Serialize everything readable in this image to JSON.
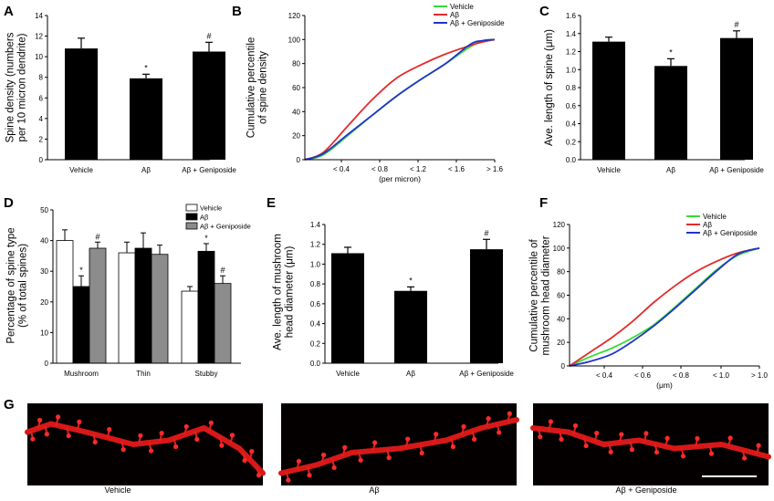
{
  "panel_letters": [
    "A",
    "B",
    "C",
    "D",
    "E",
    "F",
    "G"
  ],
  "colors": {
    "vehicle_line": "#33dd33",
    "abeta_line": "#e32b2b",
    "genip_line": "#2233cc",
    "bar_black": "#000000",
    "bar_white": "#ffffff",
    "bar_gray": "#8c8c8c"
  },
  "chart_data": [
    {
      "id": "A",
      "type": "bar",
      "categories": [
        "Vehicle",
        "Aβ",
        "Aβ + Geniposide"
      ],
      "values": [
        10.8,
        7.9,
        10.5
      ],
      "errors": [
        1.0,
        0.4,
        0.9
      ],
      "sig": [
        "",
        "*",
        "#"
      ],
      "ylabel": [
        "Spine density (numbers",
        "per 10 micron dendrite)"
      ],
      "ylim": [
        0,
        14
      ],
      "yticks": [
        "0",
        "2",
        "4",
        "6",
        "8",
        "10",
        "12",
        "14"
      ]
    },
    {
      "id": "B",
      "type": "line",
      "ylabel": [
        "Cumulative percentile",
        "of spine density"
      ],
      "xlabel": "(per micron)",
      "ylim": [
        0,
        120
      ],
      "yticks": [
        "0",
        "20",
        "40",
        "60",
        "80",
        "100",
        "120"
      ],
      "xticks": [
        "< 0.4",
        "< 0.8",
        "< 1.2",
        "< 1.6",
        "> 1.6"
      ],
      "legend": [
        "Vehicle",
        "Aβ",
        "Aβ + Geniposide"
      ],
      "series": [
        {
          "name": "Vehicle",
          "x": [
            0.25,
            0.4,
            0.6,
            0.8,
            1.0,
            1.2,
            1.4,
            1.6,
            1.7,
            1.8
          ],
          "y": [
            0,
            4,
            20,
            37,
            53,
            67,
            80,
            94,
            99,
            100
          ]
        },
        {
          "name": "Aβ",
          "x": [
            0.25,
            0.4,
            0.6,
            0.8,
            1.0,
            1.2,
            1.4,
            1.6,
            1.7,
            1.8
          ],
          "y": [
            0,
            6,
            28,
            50,
            68,
            79,
            88,
            95,
            98,
            100
          ]
        },
        {
          "name": "Aβ + Geniposide",
          "x": [
            0.25,
            0.4,
            0.6,
            0.8,
            1.0,
            1.2,
            1.4,
            1.6,
            1.7,
            1.8
          ],
          "y": [
            0,
            5,
            21,
            37,
            53,
            67,
            80,
            96,
            99,
            100
          ]
        }
      ]
    },
    {
      "id": "C",
      "type": "bar",
      "categories": [
        "Vehicle",
        "Aβ",
        "Aβ + Geniposide"
      ],
      "values": [
        1.31,
        1.04,
        1.35
      ],
      "errors": [
        0.05,
        0.08,
        0.08
      ],
      "sig": [
        "",
        "*",
        "#"
      ],
      "ylabel": [
        "Ave. length of spine (μm)"
      ],
      "ylim": [
        0,
        1.6
      ],
      "yticks": [
        "0.0",
        "0.2",
        "0.4",
        "0.6",
        "0.8",
        "1.0",
        "1.2",
        "1.4",
        "1.6"
      ]
    },
    {
      "id": "D",
      "type": "grouped-bar",
      "categories": [
        "Mushroom",
        "Thin",
        "Stubby"
      ],
      "ylabel": [
        "Percentage of spine type",
        "(% of total spines)"
      ],
      "ylim": [
        0,
        50
      ],
      "yticks": [
        "0",
        "10",
        "20",
        "30",
        "40",
        "50"
      ],
      "legend": [
        "Vehicle",
        "Aβ",
        "Aβ + Geniposide"
      ],
      "series": [
        {
          "name": "Vehicle",
          "values": [
            40,
            36,
            23.5
          ],
          "errors": [
            3.5,
            3.5,
            1.5
          ],
          "sig": [
            "",
            "",
            ""
          ]
        },
        {
          "name": "Aβ",
          "values": [
            25,
            37.5,
            36.5
          ],
          "errors": [
            3.5,
            5,
            2.5
          ],
          "sig": [
            "*",
            "",
            "*"
          ]
        },
        {
          "name": "Aβ + Geniposide",
          "values": [
            37.5,
            35.5,
            26
          ],
          "errors": [
            2,
            3,
            2.5
          ],
          "sig": [
            "#",
            "",
            "#"
          ]
        }
      ]
    },
    {
      "id": "E",
      "type": "bar",
      "categories": [
        "Vehicle",
        "Aβ",
        "Aβ + Geniposide"
      ],
      "values": [
        1.11,
        0.73,
        1.15
      ],
      "errors": [
        0.06,
        0.04,
        0.1
      ],
      "sig": [
        "",
        "*",
        "#"
      ],
      "ylabel": [
        "Ave. length of mushroom",
        "head diameter (μm)"
      ],
      "ylim": [
        0,
        1.4
      ],
      "yticks": [
        "0.0",
        "0.2",
        "0.4",
        "0.6",
        "0.8",
        "1.0",
        "1.2",
        "1.4"
      ]
    },
    {
      "id": "F",
      "type": "line",
      "ylabel": [
        "Cumulative percentile of",
        "mushroom head diameter"
      ],
      "xlabel": "(μm)",
      "ylim": [
        0,
        120
      ],
      "yticks": [
        "0",
        "20",
        "40",
        "60",
        "80",
        "100",
        "120"
      ],
      "xticks": [
        "< 0.4",
        "< 0.6",
        "< 0.8",
        "< 1.0",
        "> 1.0"
      ],
      "legend": [
        "Vehicle",
        "Aβ",
        "Aβ + Geniposide"
      ],
      "series": [
        {
          "name": "Vehicle",
          "x": [
            0.2,
            0.3,
            0.4,
            0.5,
            0.6,
            0.7,
            0.8,
            0.9,
            1.0,
            1.1
          ],
          "y": [
            0,
            8,
            15,
            24,
            35,
            50,
            66,
            82,
            94,
            100
          ]
        },
        {
          "name": "Aβ",
          "x": [
            0.2,
            0.3,
            0.4,
            0.5,
            0.6,
            0.7,
            0.8,
            0.9,
            1.0,
            1.1
          ],
          "y": [
            0,
            12,
            24,
            38,
            54,
            68,
            80,
            89,
            96,
            100
          ]
        },
        {
          "name": "Aβ + Geniposide",
          "x": [
            0.2,
            0.3,
            0.4,
            0.5,
            0.6,
            0.7,
            0.8,
            0.9,
            1.0,
            1.1
          ],
          "y": [
            0,
            4,
            10,
            21,
            34,
            49,
            65,
            81,
            95,
            100
          ]
        }
      ]
    }
  ],
  "micrographs": {
    "labels": [
      "Vehicle",
      "Aβ",
      "Aβ + Geniposide"
    ]
  }
}
